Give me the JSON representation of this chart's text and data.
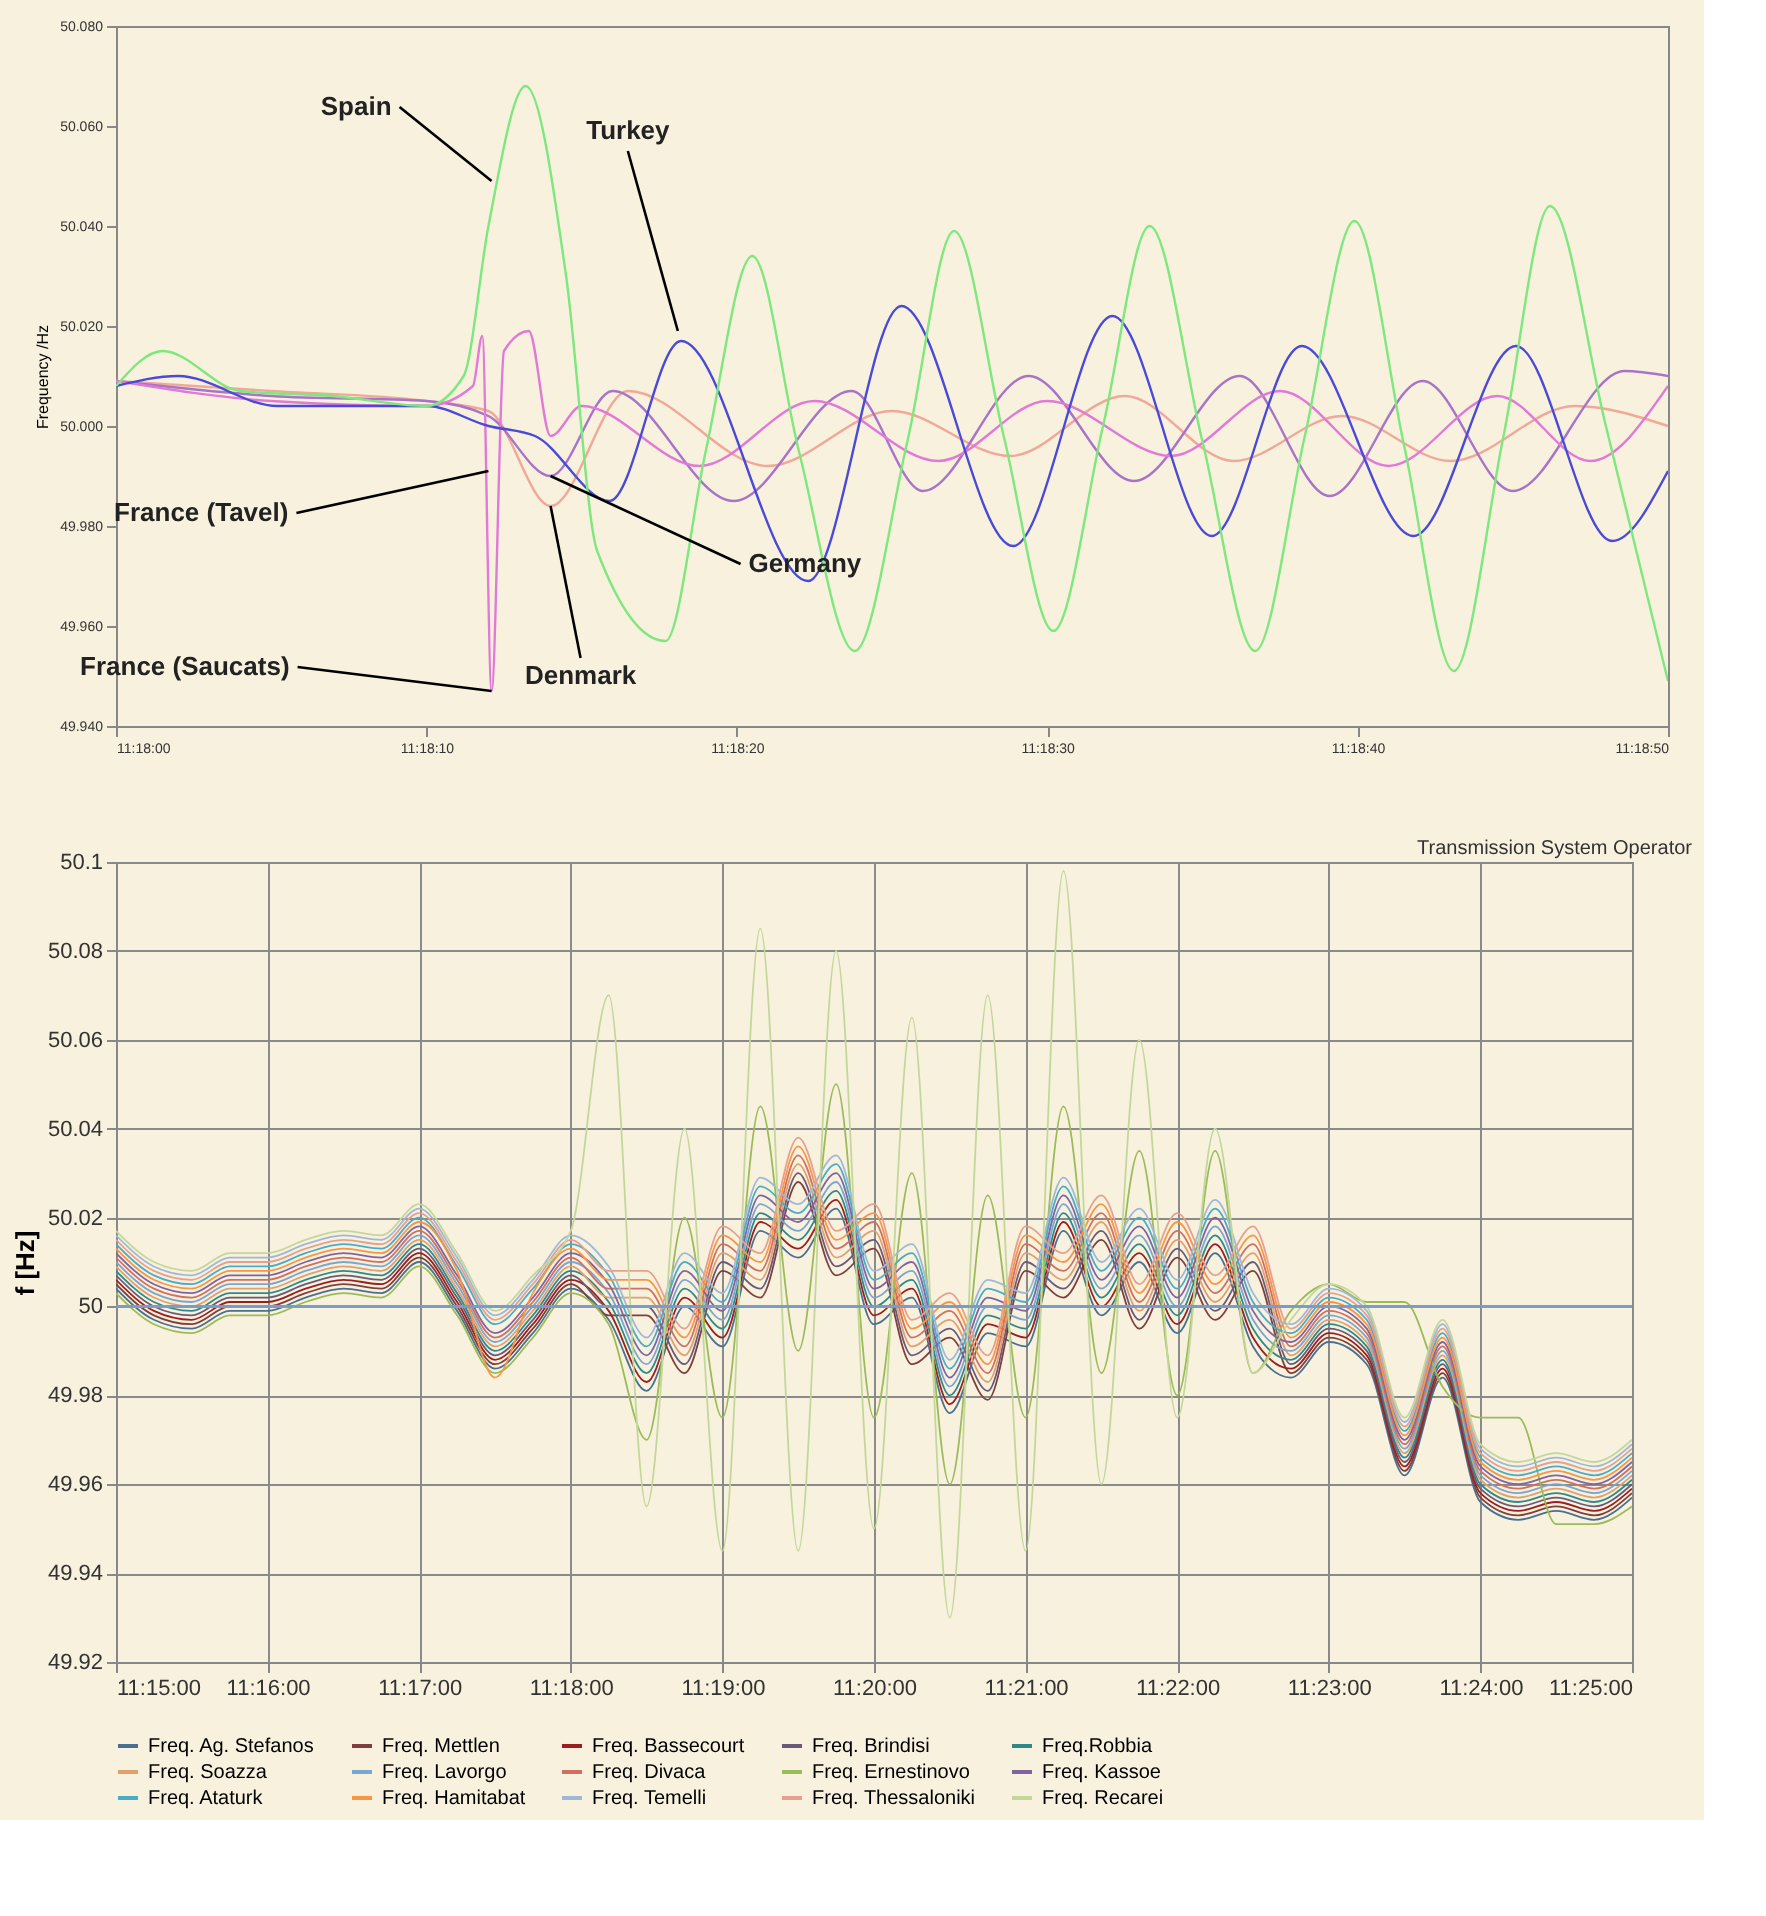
{
  "chart_data": [
    {
      "type": "line",
      "ylabel": "Frequency /Hz",
      "grid": false,
      "xlim": [
        11.3,
        11.313889
      ],
      "xticks": [
        {
          "value": 11.3,
          "label": "11:18:00"
        },
        {
          "value": 11.302778,
          "label": "11:18:10"
        },
        {
          "value": 11.305556,
          "label": "11:18:20"
        },
        {
          "value": 11.308333,
          "label": "11:18:30"
        },
        {
          "value": 11.311111,
          "label": "11:18:40"
        },
        {
          "value": 11.313889,
          "label": "11:18:50"
        }
      ],
      "ylim": [
        49.94,
        50.08
      ],
      "yticks": [
        {
          "value": 49.94,
          "label": "49.940"
        },
        {
          "value": 49.96,
          "label": "49.960"
        },
        {
          "value": 49.98,
          "label": "49.980"
        },
        {
          "value": 50,
          "label": "50.000"
        },
        {
          "value": 50.02,
          "label": "50.020"
        },
        {
          "value": 50.04,
          "label": "50.040"
        },
        {
          "value": 50.06,
          "label": "50.060"
        },
        {
          "value": 50.08,
          "label": "50.080"
        }
      ],
      "series": [
        {
          "color": "#f0a898",
          "x": [
            11.3,
            11.301389,
            11.302778,
            11.303333,
            11.303889,
            11.304583,
            11.305833,
            11.306944,
            11.308,
            11.309028,
            11.31,
            11.310972,
            11.311944,
            11.313056,
            11.313889
          ],
          "values": [
            50.009,
            50.007,
            50.005,
            50.003,
            49.984,
            50.007,
            49.992,
            50.003,
            49.994,
            50.006,
            49.993,
            50.002,
            49.993,
            50.004,
            50.0
          ]
        },
        {
          "color": "#a874c8",
          "x": [
            11.3,
            11.301389,
            11.302778,
            11.303333,
            11.303889,
            11.304444,
            11.305528,
            11.306583,
            11.307222,
            11.308167,
            11.309111,
            11.310056,
            11.310861,
            11.311694,
            11.3125,
            11.3135,
            11.313889
          ],
          "values": [
            50.009,
            50.006,
            50.005,
            50.002,
            49.99,
            50.007,
            49.985,
            50.007,
            49.987,
            50.01,
            49.989,
            50.01,
            49.986,
            50.009,
            49.987,
            50.011,
            50.01
          ]
        },
        {
          "color": "#e07ad6",
          "x": [
            11.3,
            11.301389,
            11.302778,
            11.303194,
            11.303278,
            11.303361,
            11.303472,
            11.303694,
            11.303889,
            11.304167,
            11.305222,
            11.30625,
            11.307361,
            11.308333,
            11.309444,
            11.310417,
            11.311389,
            11.312361,
            11.313194,
            11.313889
          ],
          "values": [
            50.009,
            50.005,
            50.004,
            50.008,
            50.018,
            49.947,
            50.015,
            50.019,
            49.998,
            50.004,
            49.992,
            50.005,
            49.993,
            50.005,
            49.994,
            50.007,
            49.992,
            50.006,
            49.993,
            50.008
          ]
        },
        {
          "color": "#4a4ad6",
          "x": [
            11.3,
            11.300556,
            11.301444,
            11.302778,
            11.303333,
            11.30375,
            11.304417,
            11.305056,
            11.306194,
            11.307028,
            11.308028,
            11.308917,
            11.309806,
            11.310611,
            11.311611,
            11.312528,
            11.313389,
            11.313889
          ],
          "values": [
            50.008,
            50.01,
            50.004,
            50.004,
            50.0,
            49.998,
            49.985,
            50.017,
            49.969,
            50.024,
            49.976,
            50.022,
            49.978,
            50.016,
            49.978,
            50.016,
            49.977,
            49.991
          ]
        },
        {
          "color": "#7ee87e",
          "x": [
            11.3,
            11.300417,
            11.301111,
            11.301944,
            11.302778,
            11.303111,
            11.303333,
            11.303667,
            11.304028,
            11.304306,
            11.304917,
            11.305278,
            11.305694,
            11.306111,
            11.306611,
            11.307083,
            11.3075,
            11.307944,
            11.308389,
            11.308833,
            11.30925,
            11.309722,
            11.310194,
            11.310639,
            11.311083,
            11.311528,
            11.311972,
            11.312417,
            11.312833,
            11.313333,
            11.313889
          ],
          "values": [
            50.008,
            50.015,
            50.007,
            50.006,
            50.004,
            50.01,
            50.04,
            50.068,
            50.03,
            49.975,
            49.957,
            49.995,
            50.034,
            49.995,
            49.955,
            49.997,
            50.039,
            49.998,
            49.959,
            50.0,
            50.04,
            49.997,
            49.955,
            49.998,
            50.041,
            49.996,
            49.951,
            49.998,
            50.044,
            50.0,
            49.949
          ]
        }
      ],
      "annotations": [
        {
          "text": "Spain",
          "x": 11.303361,
          "y": 50.049
        },
        {
          "text": "Turkey",
          "x": 11.305028,
          "y": 50.019
        },
        {
          "text": "France (Tavel)",
          "x": 11.303333,
          "y": 49.991
        },
        {
          "text": "Germany",
          "x": 11.303889,
          "y": 49.99
        },
        {
          "text": "Denmark",
          "x": 11.303889,
          "y": 49.984
        },
        {
          "text": "France (Saucats)",
          "x": 11.303361,
          "y": 49.947
        }
      ]
    },
    {
      "type": "line",
      "ylabel": "f [Hz]",
      "grid": true,
      "legend": "bottom",
      "xlim": [
        11.25,
        11.416667
      ],
      "xticks": [
        {
          "value": 11.25,
          "label": "11:15:00"
        },
        {
          "value": 11.266667,
          "label": "11:16:00"
        },
        {
          "value": 11.283333,
          "label": "11:17:00"
        },
        {
          "value": 11.3,
          "label": "11:18:00"
        },
        {
          "value": 11.316667,
          "label": "11:19:00"
        },
        {
          "value": 11.333333,
          "label": "11:20:00"
        },
        {
          "value": 11.35,
          "label": "11:21:00"
        },
        {
          "value": 11.366667,
          "label": "11:22:00"
        },
        {
          "value": 11.383333,
          "label": "11:23:00"
        },
        {
          "value": 11.4,
          "label": "11:24:00"
        },
        {
          "value": 11.416667,
          "label": "11:25:00"
        }
      ],
      "ylim": [
        49.92,
        50.1
      ],
      "yticks": [
        49.92,
        49.94,
        49.96,
        49.98,
        50,
        50.02,
        50.04,
        50.06,
        50.08,
        50.1
      ],
      "ref_lines": [
        {
          "axis": "y",
          "value": 50,
          "color": "#7a9cc6"
        }
      ],
      "annotations": [
        "Transmission System Operator"
      ],
      "x": [
        11.25,
        11.254167,
        11.258333,
        11.2625,
        11.266667,
        11.270833,
        11.275,
        11.279167,
        11.283333,
        11.2875,
        11.291667,
        11.295833,
        11.3,
        11.304167,
        11.308333,
        11.3125,
        11.316667,
        11.320833,
        11.325,
        11.329167,
        11.333333,
        11.3375,
        11.341667,
        11.345833,
        11.35,
        11.354167,
        11.358333,
        11.3625,
        11.366667,
        11.370833,
        11.375,
        11.379167,
        11.383333,
        11.3875,
        11.391667,
        11.395833,
        11.4,
        11.404167,
        11.408333,
        11.4125,
        11.416667
      ],
      "series": [
        {
          "name": "Freq. Ag. Stefanos",
          "color": "#4a7090",
          "values": [
            50.004,
            49.997,
            49.995,
            49.999,
            49.999,
            50.002,
            50.004,
            50.003,
            50.01,
            49.999,
            49.986,
            49.994,
            50.004,
            49.997,
            49.981,
            50.0,
            49.991,
            50.017,
            50.011,
            50.022,
            49.996,
            50.002,
            49.976,
            49.994,
            49.991,
            50.017,
            49.998,
            50.01,
            49.994,
            50.012,
            49.991,
            49.984,
            49.992,
            49.987,
            49.962,
            49.984,
            49.956,
            49.952,
            49.954,
            49.952,
            49.957
          ]
        },
        {
          "name": "Freq. Mettlen",
          "color": "#7f3f3f",
          "values": [
            50.005,
            49.998,
            49.996,
            50.0,
            50.0,
            50.003,
            50.005,
            50.004,
            50.011,
            50.0,
            49.987,
            49.995,
            50.005,
            49.998,
            49.998,
            49.985,
            50.008,
            50.002,
            50.028,
            50.007,
            50.013,
            49.987,
            49.993,
            49.979,
            50.008,
            50.002,
            50.015,
            49.995,
            50.011,
            49.997,
            50.008,
            49.985,
            49.993,
            49.988,
            49.963,
            49.985,
            49.957,
            49.953,
            49.955,
            49.953,
            49.958
          ]
        },
        {
          "name": "Freq. Bassecourt",
          "color": "#9a2020",
          "values": [
            50.006,
            49.999,
            49.997,
            50.001,
            50.001,
            50.004,
            50.006,
            50.005,
            50.012,
            50.001,
            49.988,
            49.996,
            50.006,
            49.999,
            49.983,
            50.002,
            49.993,
            50.019,
            50.013,
            50.024,
            49.998,
            50.004,
            49.978,
            49.996,
            49.993,
            50.019,
            50.0,
            50.012,
            49.996,
            50.014,
            49.993,
            49.986,
            49.994,
            49.989,
            49.964,
            49.986,
            49.958,
            49.954,
            49.956,
            49.954,
            49.959
          ]
        },
        {
          "name": "Freq. Brindisi",
          "color": "#6a5a7a",
          "values": [
            50.007,
            50.0,
            49.998,
            50.002,
            50.002,
            50.005,
            50.007,
            50.006,
            50.013,
            50.002,
            49.989,
            49.997,
            50.007,
            50.0,
            50.0,
            49.987,
            50.01,
            50.004,
            50.03,
            50.009,
            50.015,
            49.989,
            49.995,
            49.981,
            50.01,
            50.004,
            50.017,
            49.997,
            50.013,
            49.999,
            50.01,
            49.987,
            49.995,
            49.99,
            49.965,
            49.987,
            49.959,
            49.955,
            49.957,
            49.955,
            49.96
          ]
        },
        {
          "name": "Freq.Robbia",
          "color": "#2e8a8a",
          "values": [
            50.008,
            50.001,
            49.999,
            50.003,
            50.003,
            50.006,
            50.008,
            50.007,
            50.014,
            50.003,
            49.99,
            49.998,
            50.008,
            50.001,
            49.985,
            50.004,
            49.995,
            50.021,
            50.015,
            50.026,
            50.0,
            50.006,
            49.98,
            49.998,
            49.995,
            50.021,
            50.002,
            50.014,
            49.998,
            50.016,
            49.995,
            49.988,
            49.996,
            49.991,
            49.966,
            49.988,
            49.96,
            49.956,
            49.958,
            49.956,
            49.961
          ]
        },
        {
          "name": "Freq. Soazza",
          "color": "#e0a070",
          "values": [
            50.009,
            50.002,
            50.0,
            50.004,
            50.004,
            50.007,
            50.009,
            50.008,
            50.015,
            50.004,
            49.991,
            49.999,
            50.009,
            50.002,
            50.002,
            49.989,
            50.012,
            50.006,
            50.032,
            50.011,
            50.017,
            49.991,
            49.997,
            49.983,
            50.012,
            50.006,
            50.019,
            49.999,
            50.015,
            50.001,
            50.012,
            49.989,
            49.997,
            49.992,
            49.967,
            49.989,
            49.961,
            49.957,
            49.959,
            49.957,
            49.962
          ]
        },
        {
          "name": "Freq. Lavorgo",
          "color": "#7aa6d0",
          "values": [
            50.01,
            50.003,
            50.001,
            50.005,
            50.005,
            50.008,
            50.01,
            50.009,
            50.016,
            50.005,
            49.992,
            50.0,
            50.01,
            50.003,
            49.987,
            50.006,
            49.997,
            50.023,
            50.017,
            50.028,
            50.002,
            50.008,
            49.982,
            50.0,
            49.997,
            50.023,
            50.004,
            50.016,
            50.0,
            50.018,
            49.997,
            49.99,
            49.998,
            49.993,
            49.968,
            49.99,
            49.962,
            49.958,
            49.96,
            49.958,
            49.963
          ]
        },
        {
          "name": "Freq. Divaca",
          "color": "#d07060",
          "values": [
            50.011,
            50.004,
            50.002,
            50.006,
            50.006,
            50.009,
            50.011,
            50.01,
            50.017,
            50.006,
            49.993,
            50.001,
            50.011,
            50.004,
            50.004,
            49.991,
            50.014,
            50.008,
            50.034,
            50.013,
            50.019,
            49.993,
            49.999,
            49.985,
            50.014,
            50.008,
            50.021,
            50.001,
            50.017,
            50.003,
            50.014,
            49.991,
            49.999,
            49.994,
            49.969,
            49.991,
            49.963,
            49.959,
            49.961,
            49.959,
            49.964
          ]
        },
        {
          "name": "Freq. Ernestinovo",
          "color": "#9bbb59",
          "values": [
            50.003,
            49.996,
            49.994,
            49.998,
            49.998,
            50.001,
            50.003,
            50.002,
            50.009,
            49.998,
            49.985,
            49.993,
            50.003,
            49.996,
            49.97,
            50.02,
            49.975,
            50.045,
            49.99,
            50.05,
            49.975,
            50.03,
            49.96,
            50.025,
            49.975,
            50.045,
            49.985,
            50.035,
            49.98,
            50.035,
            49.985,
            49.999,
            50.005,
            50.001,
            50.001,
            49.982,
            49.975,
            49.975,
            49.951,
            49.951,
            49.955
          ]
        },
        {
          "name": "Freq. Kassoe",
          "color": "#8064a2",
          "values": [
            50.012,
            50.005,
            50.003,
            50.007,
            50.007,
            50.01,
            50.012,
            50.011,
            50.018,
            50.007,
            49.994,
            50.002,
            50.012,
            50.005,
            49.989,
            50.008,
            49.999,
            50.025,
            50.019,
            50.03,
            50.004,
            50.01,
            49.984,
            50.002,
            49.999,
            50.025,
            50.006,
            50.018,
            50.002,
            50.02,
            49.999,
            49.992,
            50.0,
            49.995,
            49.97,
            49.992,
            49.964,
            49.96,
            49.962,
            49.96,
            49.965
          ]
        },
        {
          "name": "Freq. Ataturk",
          "color": "#4bacc6",
          "values": [
            50.014,
            50.007,
            50.005,
            50.009,
            50.009,
            50.012,
            50.014,
            50.013,
            50.02,
            50.009,
            49.996,
            50.004,
            50.014,
            50.007,
            49.991,
            50.01,
            50.001,
            50.027,
            50.021,
            50.032,
            50.006,
            50.012,
            49.986,
            50.004,
            50.001,
            50.027,
            50.008,
            50.02,
            50.004,
            50.022,
            50.001,
            49.994,
            50.002,
            49.997,
            49.972,
            49.994,
            49.966,
            49.962,
            49.964,
            49.962,
            49.967
          ]
        },
        {
          "name": "Freq. Hamitabat",
          "color": "#f79646",
          "values": [
            50.013,
            50.006,
            50.004,
            50.008,
            50.008,
            50.011,
            50.013,
            50.012,
            50.019,
            50.008,
            49.984,
            50.003,
            50.013,
            50.006,
            50.006,
            49.993,
            50.016,
            50.01,
            50.036,
            50.015,
            50.021,
            49.995,
            50.001,
            49.987,
            50.016,
            50.01,
            50.023,
            50.003,
            50.019,
            50.005,
            50.016,
            49.993,
            50.001,
            49.996,
            49.971,
            49.993,
            49.965,
            49.961,
            49.963,
            49.961,
            49.966
          ]
        },
        {
          "name": "Freq. Temelli",
          "color": "#a0b8d8",
          "values": [
            50.016,
            50.009,
            50.007,
            50.011,
            50.011,
            50.014,
            50.016,
            50.015,
            50.022,
            50.011,
            49.998,
            50.006,
            50.016,
            50.009,
            49.993,
            50.012,
            50.003,
            50.029,
            50.023,
            50.034,
            50.008,
            50.014,
            49.988,
            50.006,
            50.003,
            50.029,
            50.01,
            50.022,
            50.006,
            50.024,
            50.003,
            49.996,
            50.004,
            49.999,
            49.974,
            49.996,
            49.968,
            49.964,
            49.966,
            49.964,
            49.969
          ]
        },
        {
          "name": "Freq. Thessaloniki",
          "color": "#e6a090",
          "values": [
            50.015,
            50.008,
            50.006,
            50.01,
            50.01,
            50.013,
            50.015,
            50.014,
            50.021,
            50.01,
            49.997,
            50.005,
            50.015,
            50.008,
            50.008,
            49.995,
            50.018,
            50.012,
            50.038,
            50.017,
            50.023,
            49.997,
            50.003,
            49.989,
            50.018,
            50.012,
            50.025,
            50.005,
            50.021,
            50.007,
            50.018,
            49.995,
            50.003,
            49.998,
            49.973,
            49.995,
            49.967,
            49.963,
            49.965,
            49.963,
            49.968
          ]
        },
        {
          "name": "Freq. Recarei",
          "color": "#c4d79b",
          "values": [
            50.017,
            50.01,
            50.008,
            50.012,
            50.012,
            50.015,
            50.017,
            50.016,
            50.023,
            50.012,
            49.999,
            50.007,
            50.017,
            50.07,
            49.955,
            50.04,
            49.945,
            50.085,
            49.945,
            50.08,
            49.95,
            50.065,
            49.93,
            50.07,
            49.945,
            50.098,
            49.96,
            50.06,
            49.975,
            50.04,
            49.985,
            49.997,
            50.005,
            50.0,
            49.975,
            49.997,
            49.969,
            49.965,
            49.967,
            49.965,
            49.97
          ]
        }
      ]
    }
  ]
}
